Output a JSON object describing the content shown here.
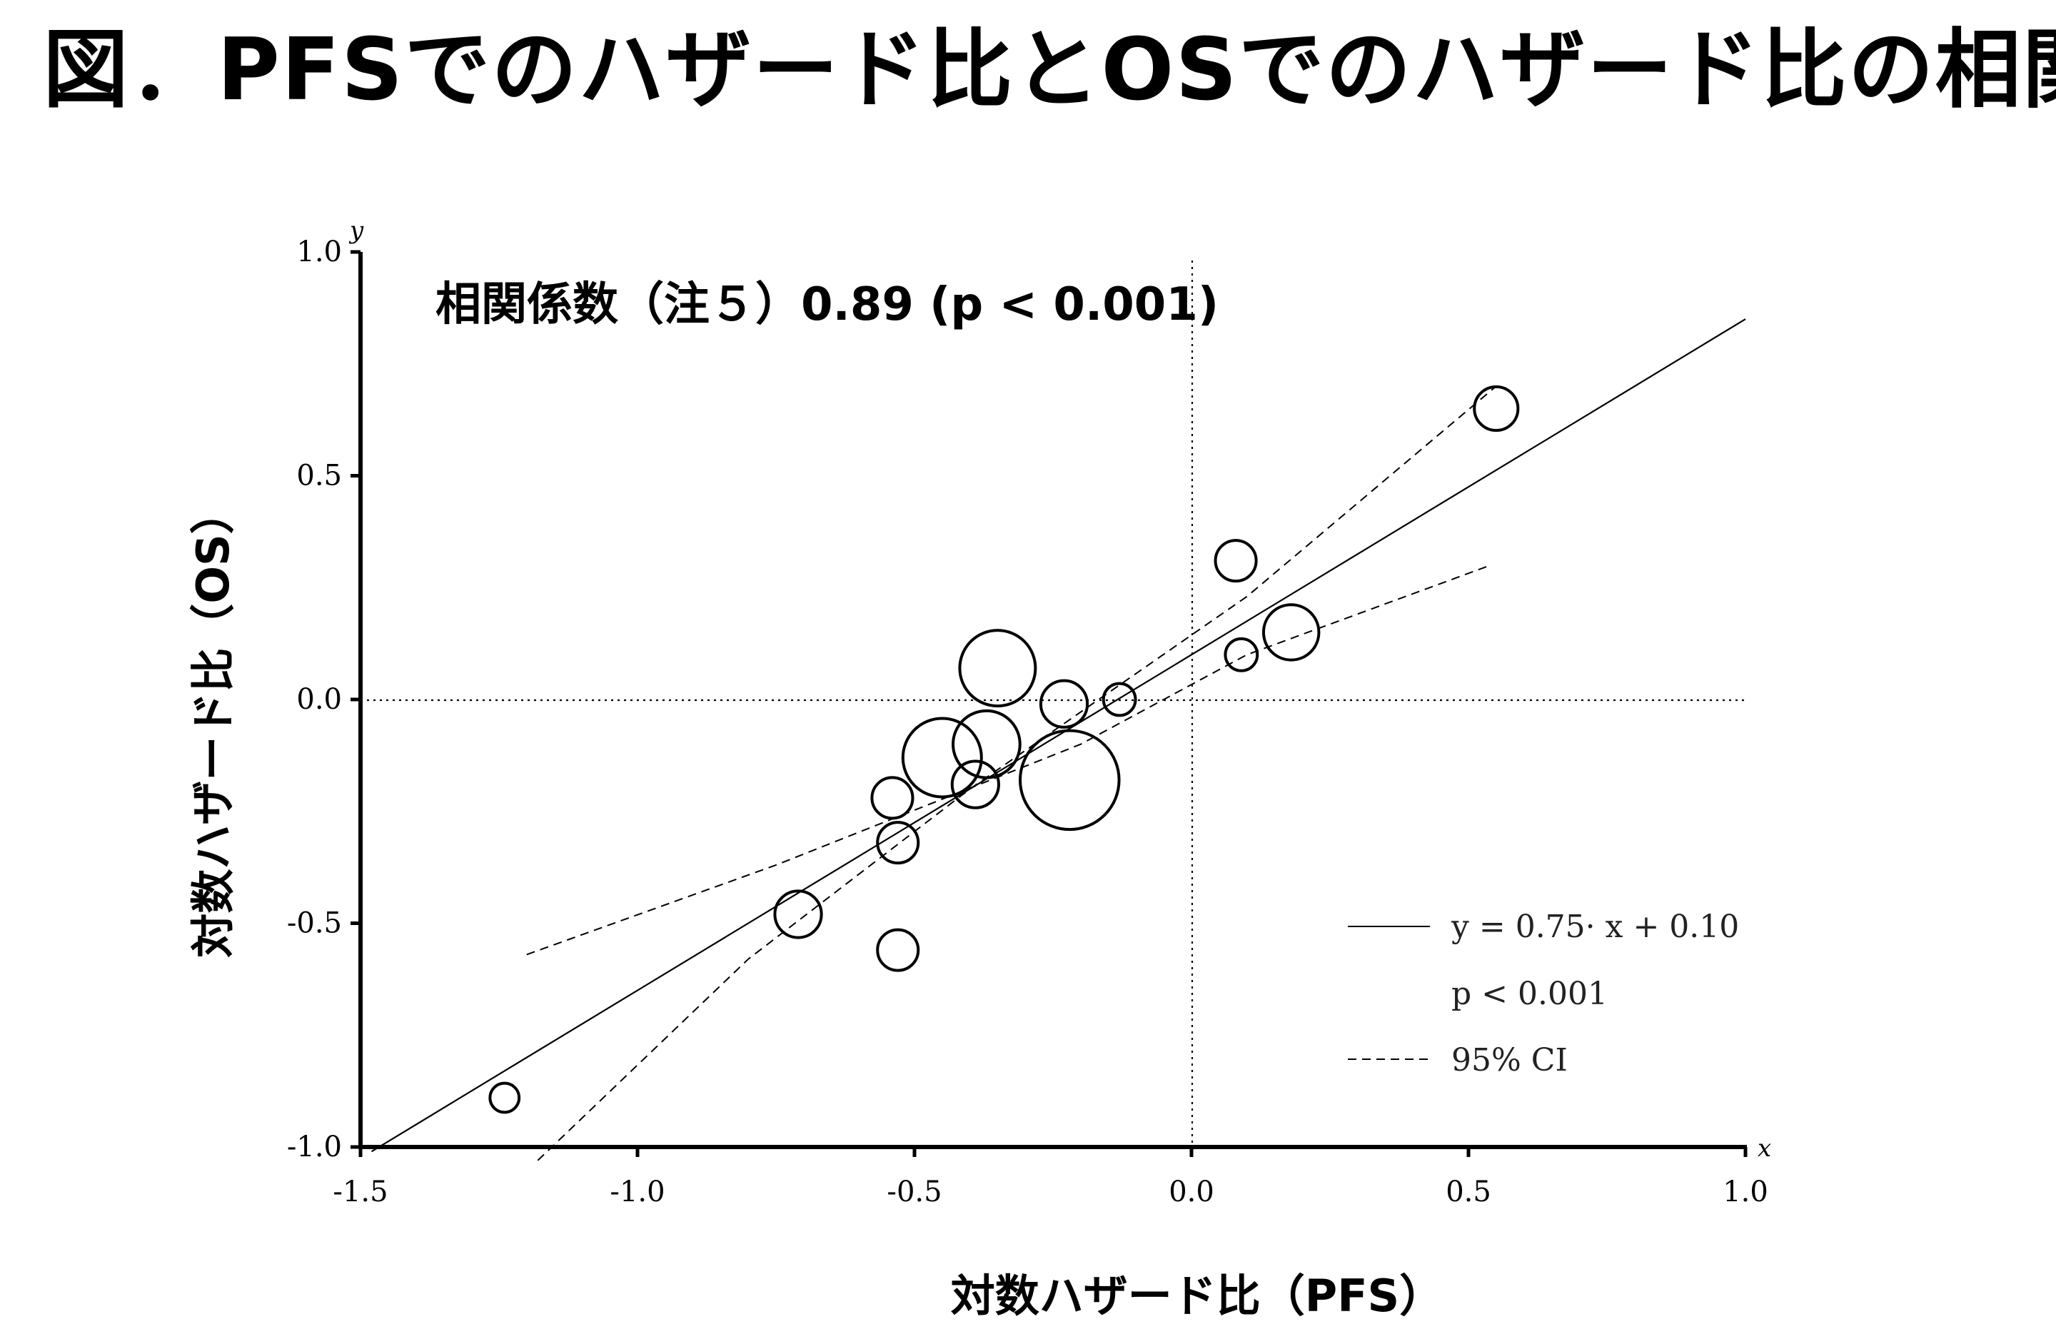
{
  "title": "図．PFSでのハザード比とOSでのハザード比の相関",
  "chart_data": {
    "type": "scatter",
    "style": "bubble",
    "xlabel": "対数ハザード比（PFS）",
    "ylabel": "対数ハザード比（OS）",
    "x_var": "x",
    "y_var": "y",
    "xlim": [
      -1.5,
      1.0
    ],
    "ylim": [
      -1.0,
      1.0
    ],
    "x_ticks": [
      -1.5,
      -1.0,
      -0.5,
      0.0,
      0.5,
      1.0
    ],
    "x_tick_labels": [
      "-1.5",
      "-1.0",
      "-0.5",
      "0.0",
      "0.5",
      "1.0"
    ],
    "y_ticks": [
      -1.0,
      -0.5,
      0.0,
      0.5,
      1.0
    ],
    "y_tick_labels": [
      "-1.0",
      "-0.5",
      "0.0",
      "0.5",
      "1.0"
    ],
    "grid": false,
    "reference_lines": {
      "x": 0.0,
      "y": 0.0,
      "style": "dotted"
    },
    "annotation": "相関係数（注５）0.89 (p < 0.001)",
    "regression": {
      "slope": 0.75,
      "intercept": 0.1,
      "x_range": [
        -1.48,
        1.0
      ]
    },
    "ci_lower": [
      [
        -1.2,
        -0.57
      ],
      [
        -0.75,
        -0.37
      ],
      [
        -0.2,
        -0.1
      ],
      [
        0.1,
        0.1
      ],
      [
        0.54,
        0.3
      ]
    ],
    "ci_upper": [
      [
        -1.18,
        -1.03
      ],
      [
        -0.8,
        -0.58
      ],
      [
        -0.4,
        -0.2
      ],
      [
        0.1,
        0.23
      ],
      [
        0.55,
        0.7
      ]
    ],
    "legend": {
      "position": "bottom-right",
      "line_label": "y = 0.75· x + 0.10",
      "p_label": "p < 0.001",
      "ci_label": "95% CI"
    },
    "points": [
      {
        "x": -1.24,
        "y": -0.89,
        "size": 1.0
      },
      {
        "x": -0.71,
        "y": -0.48,
        "size": 1.6
      },
      {
        "x": -0.53,
        "y": -0.56,
        "size": 1.4
      },
      {
        "x": -0.54,
        "y": -0.22,
        "size": 1.4
      },
      {
        "x": -0.53,
        "y": -0.32,
        "size": 1.4
      },
      {
        "x": -0.45,
        "y": -0.13,
        "size": 2.7
      },
      {
        "x": -0.39,
        "y": -0.19,
        "size": 1.6
      },
      {
        "x": -0.37,
        "y": -0.1,
        "size": 2.3
      },
      {
        "x": -0.35,
        "y": 0.07,
        "size": 2.6
      },
      {
        "x": -0.23,
        "y": -0.01,
        "size": 1.6
      },
      {
        "x": -0.22,
        "y": -0.18,
        "size": 3.4
      },
      {
        "x": -0.13,
        "y": 0.0,
        "size": 1.1
      },
      {
        "x": 0.08,
        "y": 0.31,
        "size": 1.4
      },
      {
        "x": 0.09,
        "y": 0.1,
        "size": 1.1
      },
      {
        "x": 0.18,
        "y": 0.15,
        "size": 1.9
      },
      {
        "x": 0.55,
        "y": 0.65,
        "size": 1.5
      }
    ]
  }
}
